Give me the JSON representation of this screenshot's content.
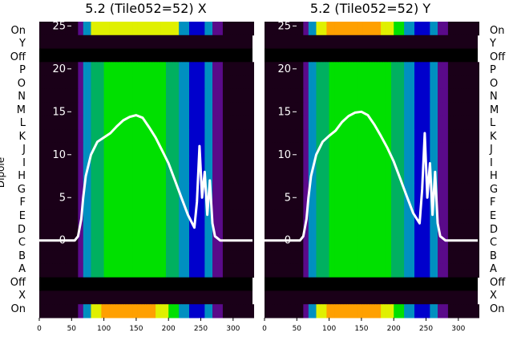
{
  "chart_data": [
    {
      "type": "heatmap",
      "title": "5.2 (Tile052=52) X",
      "ylabel": "Dipole",
      "xlim": [
        0,
        330
      ],
      "x_ticks": [
        "0",
        "50",
        "100",
        "150",
        "200",
        "250",
        "300"
      ],
      "y_ticks": [
        "0",
        "5",
        "10",
        "15",
        "20",
        "25"
      ],
      "ylim": [
        -9,
        25.5
      ],
      "overlay_series": {
        "x": [
          0,
          40,
          55,
          60,
          65,
          68,
          72,
          80,
          90,
          100,
          110,
          120,
          130,
          140,
          150,
          160,
          170,
          180,
          190,
          200,
          210,
          220,
          230,
          240,
          244,
          248,
          252,
          256,
          260,
          264,
          268,
          272,
          280,
          300,
          330
        ],
        "y": [
          0,
          0,
          0,
          0.5,
          2.5,
          5,
          7.5,
          10,
          11.5,
          12,
          12.5,
          13.3,
          14,
          14.4,
          14.6,
          14.3,
          13.2,
          12,
          10.5,
          9,
          7,
          5,
          3,
          1.5,
          4.5,
          11,
          5,
          8,
          3,
          7,
          2,
          0.5,
          0,
          0,
          0
        ]
      }
    },
    {
      "type": "heatmap",
      "title": "5.2 (Tile052=52) Y",
      "ylabel": "",
      "xlim": [
        0,
        330
      ],
      "x_ticks": [
        "0",
        "50",
        "100",
        "150",
        "200",
        "250",
        "300"
      ],
      "y_ticks": [
        "0",
        "5",
        "10",
        "15",
        "20",
        "25"
      ],
      "ylim": [
        -9,
        25.5
      ],
      "overlay_series": {
        "x": [
          0,
          40,
          55,
          60,
          65,
          68,
          72,
          80,
          90,
          100,
          110,
          120,
          130,
          140,
          150,
          160,
          170,
          180,
          190,
          200,
          210,
          220,
          230,
          240,
          244,
          248,
          252,
          256,
          260,
          264,
          268,
          272,
          280,
          300,
          330
        ],
        "y": [
          0,
          0,
          0,
          0.5,
          2.5,
          5,
          7.5,
          10,
          11.5,
          12.2,
          12.8,
          13.8,
          14.5,
          14.9,
          15,
          14.6,
          13.5,
          12.2,
          10.8,
          9.2,
          7.2,
          5.2,
          3.2,
          2,
          6,
          12.5,
          5,
          9,
          3,
          8,
          2,
          0.5,
          0,
          0,
          0
        ]
      }
    }
  ],
  "left_bands": [
    "On",
    "Y",
    "Off",
    "P",
    "O",
    "N",
    "M",
    "L",
    "K",
    "J",
    "I",
    "H",
    "G",
    "F",
    "E",
    "D",
    "C",
    "B",
    "A",
    "Off",
    "X",
    "On"
  ],
  "right_bands": [
    "On",
    "Y",
    "Off",
    "P",
    "O",
    "N",
    "M",
    "L",
    "K",
    "J",
    "I",
    "H",
    "G",
    "F",
    "E",
    "D",
    "C",
    "B",
    "A",
    "Off",
    "X",
    "On"
  ],
  "colors": {
    "line": "#ffffff",
    "background_dark": "#120010",
    "spectrum": [
      "#1a0018",
      "#5a0a8a",
      "#0000cc",
      "#0090c0",
      "#00b060",
      "#00e000",
      "#e0f000",
      "#ffa000",
      "#ff3000"
    ]
  }
}
